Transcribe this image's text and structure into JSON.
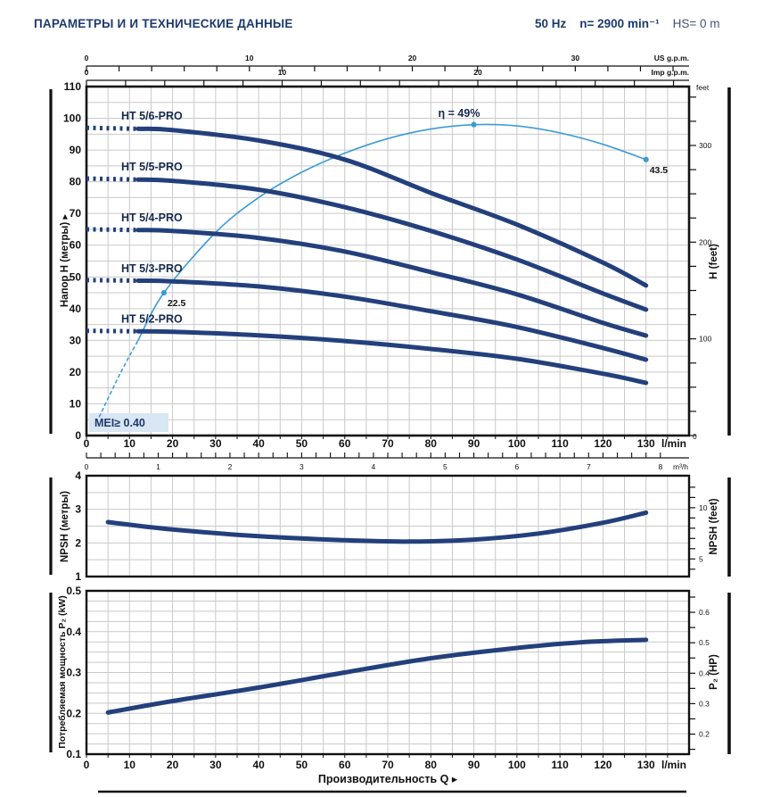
{
  "header": {
    "title": "ПАРАМЕТРЫ И И ТЕХНИЧЕСКИЕ ДАННЫЕ",
    "frequency": "50 Hz",
    "speed": "n= 2900 min⁻¹",
    "suction_head": "HS= 0 m"
  },
  "colors": {
    "navy_curve": "#23407c",
    "efficiency_blue": "#3d9bd5",
    "title_navy": "#1e3a6d",
    "grid_gray": "#c9c9c9",
    "axis_black": "#111111",
    "mei_bg": "#d9e6f3"
  },
  "chart_data": [
    {
      "type": "line",
      "title": "H-Q pump performance curves",
      "xlabel": "Производительность Q ▸",
      "ylabel_left": "Напор  H  (метры) ▸",
      "ylabel_right": "H (feet)",
      "x_unit": "l/min",
      "xlim": [
        0,
        140
      ],
      "ylim": [
        0,
        110
      ],
      "x_tick_labels": [
        "0",
        "10",
        "20",
        "30",
        "40",
        "50",
        "60",
        "70",
        "80",
        "90",
        "100",
        "110",
        "120",
        "130"
      ],
      "y_tick_labels": [
        "0",
        "10",
        "20",
        "30",
        "40",
        "50",
        "60",
        "70",
        "80",
        "90",
        "100",
        "110"
      ],
      "grid": "on",
      "right_axis_feet": {
        "unit_top": "feet",
        "labels": [
          "100",
          "200",
          "300"
        ],
        "zero_label": "0"
      },
      "top_scale_us": {
        "unit": "US g.p.m.",
        "labels": [
          "0",
          "10",
          "20",
          "30"
        ],
        "lmin_per_unit": 3.78541
      },
      "top_scale_imp": {
        "unit": "Imp g.p.m.",
        "labels": [
          "0",
          "10",
          "20"
        ],
        "lmin_per_unit": 4.54609
      },
      "bottom_scale_m3h": {
        "unit": "m³/h",
        "labels": [
          "0",
          "1",
          "2",
          "3",
          "4",
          "5",
          "6",
          "7",
          "8"
        ],
        "lmin_per_unit": 16.6667
      },
      "mei_label": "MEI≥ 0.40",
      "series": [
        {
          "name": "HT 5/6-PRO",
          "x": [
            0,
            20,
            40,
            60,
            80,
            100,
            120,
            130
          ],
          "h": [
            97,
            96.3,
            93,
            87,
            76.5,
            66.5,
            54.5,
            47.3
          ]
        },
        {
          "name": "HT 5/5-PRO",
          "x": [
            0,
            20,
            40,
            60,
            80,
            100,
            120,
            130
          ],
          "h": [
            81,
            80.3,
            77.5,
            72,
            64.5,
            55.5,
            44.8,
            39.7
          ]
        },
        {
          "name": "HT 5/4-PRO",
          "x": [
            0,
            20,
            40,
            60,
            80,
            100,
            120,
            130
          ],
          "h": [
            65,
            64.5,
            62.3,
            58,
            51.5,
            44.5,
            35.5,
            31.5
          ]
        },
        {
          "name": "HT 5/3-PRO",
          "x": [
            0,
            20,
            40,
            60,
            80,
            100,
            120,
            130
          ],
          "h": [
            49,
            48.6,
            47,
            43.8,
            39.2,
            34.2,
            27.6,
            23.9
          ]
        },
        {
          "name": "HT 5/2-PRO",
          "x": [
            0,
            20,
            40,
            60,
            80,
            100,
            120,
            130
          ],
          "h": [
            33,
            32.7,
            31.6,
            29.8,
            27.3,
            24.2,
            19.5,
            16.6
          ]
        }
      ],
      "efficiency": {
        "note": "plotted on H axis as H = 2 × η(%)",
        "plot_scale": 2,
        "x": [
          3,
          8,
          12,
          18,
          30,
          40,
          50,
          60,
          70,
          80,
          90,
          100,
          110,
          120,
          130
        ],
        "eta": [
          3,
          10,
          15,
          22.5,
          32,
          37.5,
          41.5,
          44.5,
          46.8,
          48.3,
          49,
          48.8,
          47.7,
          45.9,
          43.5
        ],
        "peak_label": "η = 49%",
        "marked_points": [
          {
            "q": 18,
            "eta": 22.5,
            "label": "22.5"
          },
          {
            "q": 90,
            "eta": 49,
            "label": ""
          },
          {
            "q": 130,
            "eta": 43.5,
            "label": "43.5"
          }
        ]
      }
    },
    {
      "type": "line",
      "title": "NPSH curve",
      "ylabel_left": "NPSH (метры)",
      "ylabel_right": "NPSH (feet)",
      "ylim": [
        1,
        4
      ],
      "y_tick_labels": [
        "1",
        "2",
        "3",
        "4"
      ],
      "right_axis_labels": [
        "5",
        "10"
      ],
      "grid": "on",
      "x": [
        5,
        20,
        40,
        60,
        75,
        90,
        105,
        120,
        130
      ],
      "values": [
        2.62,
        2.4,
        2.2,
        2.08,
        2.04,
        2.1,
        2.28,
        2.6,
        2.9
      ]
    },
    {
      "type": "line",
      "title": "Power P2 curve",
      "xlabel": "Производительность Q ▸",
      "ylabel_left": "Потребляемая мощность  P₂ (kW)",
      "ylabel_right": "P₂ (HP)",
      "x_unit": "l/min",
      "ylim": [
        0.1,
        0.5
      ],
      "y_tick_labels": [
        "0.1",
        "0.2",
        "0.3",
        "0.4",
        "0.5"
      ],
      "right_axis_labels": [
        "0.2",
        "0.3",
        "0.4",
        "0.5",
        "0.6"
      ],
      "x_tick_labels": [
        "0",
        "10",
        "20",
        "30",
        "40",
        "50",
        "60",
        "70",
        "80",
        "90",
        "100",
        "110",
        "120",
        "130"
      ],
      "grid": "on",
      "x": [
        5,
        20,
        40,
        60,
        80,
        100,
        115,
        130
      ],
      "values": [
        0.202,
        0.23,
        0.263,
        0.3,
        0.335,
        0.36,
        0.374,
        0.38
      ]
    }
  ]
}
